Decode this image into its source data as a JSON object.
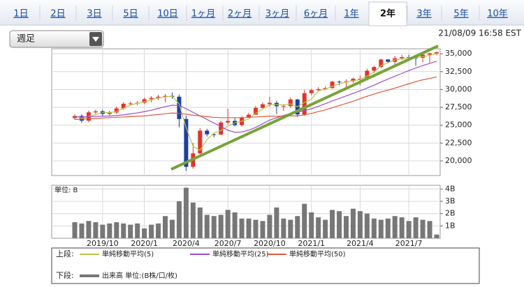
{
  "tabs": [
    {
      "label": "1日"
    },
    {
      "label": "2日"
    },
    {
      "label": "3日"
    },
    {
      "label": "5日"
    },
    {
      "label": "10日"
    },
    {
      "label": "1ヶ月"
    },
    {
      "label": "2ヶ月"
    },
    {
      "label": "3ヶ月"
    },
    {
      "label": "6ヶ月"
    },
    {
      "label": "1年"
    },
    {
      "label": "2年",
      "selected": true
    },
    {
      "label": "3年"
    },
    {
      "label": "5年"
    },
    {
      "label": "10年"
    }
  ],
  "dropdown": "週足",
  "timestamp": "21/08/09 16:58 EST",
  "legend": {
    "upper_label": "上段:",
    "lower_label": "下段:"
  },
  "chart_data": [
    {
      "type": "candlestick",
      "grid": true,
      "up_color": "#e0352b",
      "down_color": "#1f3f9e",
      "categories": [
        null,
        null,
        null,
        null,
        "2019/10",
        null,
        null,
        null,
        null,
        null,
        "2020/1",
        null,
        null,
        null,
        null,
        null,
        "2020/4",
        null,
        null,
        null,
        null,
        null,
        "2020/7",
        null,
        null,
        null,
        null,
        null,
        "2020/10",
        null,
        null,
        null,
        null,
        null,
        "2021/1",
        null,
        null,
        null,
        null,
        null,
        null,
        "2021/4",
        null,
        null,
        null,
        null,
        null,
        null,
        "2021/7",
        null,
        null,
        null,
        null
      ],
      "open": [
        26000,
        26290,
        25630,
        26800,
        26935,
        26570,
        26770,
        27350,
        28000,
        28050,
        28135,
        28645,
        28820,
        28990,
        29100,
        28990,
        25860,
        19170,
        21050,
        24240,
        23720,
        23685,
        25380,
        25600,
        25015,
        26075,
        26470,
        27430,
        27930,
        28130,
        27660,
        27680,
        28600,
        26500,
        29480,
        29910,
        30050,
        30200,
        31100,
        31000,
        31150,
        31500,
        31500,
        32630,
        33150,
        34200,
        33870,
        34380,
        34530,
        34480,
        34430,
        34870,
        35060
      ],
      "high": [
        26540,
        26540,
        27050,
        27185,
        27185,
        27020,
        27600,
        28250,
        28300,
        28385,
        28895,
        29070,
        29240,
        29350,
        29570,
        29300,
        26300,
        22500,
        24600,
        24500,
        23970,
        25630,
        27300,
        26000,
        26300,
        26750,
        27700,
        28200,
        29000,
        28400,
        27950,
        28900,
        28700,
        29930,
        30100,
        30300,
        30400,
        31200,
        31250,
        31400,
        31650,
        31950,
        32900,
        33300,
        34300,
        34250,
        34700,
        34850,
        34850,
        34600,
        35050,
        35150,
        35300
      ],
      "low": [
        25750,
        25350,
        25400,
        26550,
        26200,
        26300,
        26550,
        27150,
        27800,
        27800,
        27950,
        28200,
        28500,
        28200,
        28700,
        24700,
        18600,
        18900,
        20800,
        23400,
        23300,
        23600,
        25100,
        24850,
        24800,
        26000,
        26400,
        27300,
        27600,
        26550,
        27000,
        27400,
        26150,
        26300,
        29200,
        29700,
        29900,
        30100,
        30600,
        29900,
        30900,
        30550,
        31300,
        32300,
        33000,
        33700,
        33400,
        34100,
        34100,
        33300,
        33800,
        33750,
        34800
      ],
      "close": [
        26290,
        25630,
        26800,
        26935,
        26570,
        26770,
        27350,
        28000,
        28050,
        28135,
        28645,
        28820,
        28990,
        29100,
        28990,
        25860,
        19170,
        21050,
        24240,
        23720,
        23685,
        25380,
        25600,
        25015,
        26075,
        26470,
        27430,
        27930,
        28130,
        27660,
        27680,
        28600,
        26500,
        29480,
        29910,
        30050,
        30200,
        31100,
        31000,
        31150,
        31500,
        31500,
        32630,
        33150,
        34200,
        33870,
        34380,
        34530,
        34480,
        34430,
        34870,
        35060,
        35210
      ],
      "series": [
        {
          "name": "単純移動平均(5)",
          "color": "#b3c94a",
          "values": [
            26300,
            25960,
            26240,
            26455,
            26770,
            26760,
            26900,
            27370,
            27800,
            28060,
            28280,
            28530,
            28820,
            28970,
            29030,
            27980,
            24670,
            22030,
            21490,
            23000,
            23880,
            24260,
            24890,
            25330,
            25560,
            25850,
            26660,
            27280,
            27830,
            27910,
            27820,
            27980,
            27590,
            28190,
            28630,
            29810,
            30050,
            30450,
            30770,
            31080,
            31220,
            31380,
            31880,
            32430,
            33330,
            33740,
            34150,
            34260,
            34460,
            34480,
            34590,
            34790,
            35050
          ]
        },
        {
          "name": "単純移動平均(25)",
          "color": "#9b4fc9",
          "values": [
            26200,
            26150,
            26180,
            26220,
            26250,
            26280,
            26350,
            26450,
            26580,
            26720,
            26900,
            27100,
            27350,
            27600,
            27800,
            27750,
            27300,
            26800,
            26300,
            25800,
            25300,
            24800,
            24300,
            24000,
            24050,
            24300,
            24700,
            25200,
            25700,
            26050,
            26350,
            26650,
            26800,
            27050,
            27300,
            27650,
            28000,
            28400,
            28750,
            29100,
            29450,
            29800,
            30200,
            30600,
            31050,
            31450,
            31850,
            32250,
            32650,
            33000,
            33350,
            33650,
            33950
          ]
        },
        {
          "name": "単純移動平均(50)",
          "color": "#e0583a",
          "values": [
            25800,
            25850,
            25900,
            25950,
            26000,
            26050,
            26100,
            26150,
            26200,
            26250,
            26300,
            26400,
            26500,
            26600,
            26700,
            26650,
            26550,
            26400,
            26300,
            26200,
            26100,
            26050,
            26050,
            26050,
            26050,
            26100,
            26150,
            26200,
            26250,
            26250,
            26250,
            26300,
            26300,
            26450,
            26650,
            26900,
            27150,
            27450,
            27750,
            28050,
            28350,
            28700,
            29050,
            29350,
            29650,
            29900,
            30200,
            30500,
            30800,
            31100,
            31350,
            31550,
            31750
          ]
        }
      ],
      "ylim": [
        17950,
        35700
      ],
      "yticks": [
        {
          "value": 20000,
          "label": "20,000"
        },
        {
          "value": 22500,
          "label": "22,500"
        },
        {
          "value": 25000,
          "label": "25,000"
        },
        {
          "value": 27500,
          "label": "27,500"
        },
        {
          "value": 30000,
          "label": "30,000"
        },
        {
          "value": 32500,
          "label": "32,500"
        },
        {
          "value": 35000,
          "label": "35,000"
        }
      ]
    },
    {
      "type": "bar",
      "title": "単位: B",
      "grid": true,
      "series": [
        {
          "name": "出来高 単位:(B株/口/枚)",
          "color": "#777777",
          "values": [
            1.3,
            1.2,
            1.4,
            1.3,
            1.1,
            1.2,
            1.3,
            1.2,
            1.1,
            1.2,
            0.8,
            1.1,
            1.2,
            1.8,
            1.5,
            3.0,
            4.1,
            2.9,
            2.5,
            1.9,
            1.8,
            1.9,
            2.3,
            2.1,
            1.6,
            1.6,
            1.5,
            1.4,
            1.9,
            2.5,
            1.6,
            1.5,
            1.8,
            2.8,
            2.1,
            1.7,
            1.5,
            2.3,
            2.2,
            1.8,
            2.4,
            2.2,
            2.0,
            1.6,
            1.5,
            1.6,
            1.8,
            1.7,
            1.4,
            1.7,
            1.5,
            1.4,
            0.3
          ]
        }
      ],
      "ylim": [
        0,
        4.3
      ],
      "yticks": [
        {
          "value": 1,
          "label": "1B"
        },
        {
          "value": 2,
          "label": "2B"
        },
        {
          "value": 3,
          "label": "3B"
        },
        {
          "value": 4,
          "label": "4B"
        }
      ]
    }
  ]
}
